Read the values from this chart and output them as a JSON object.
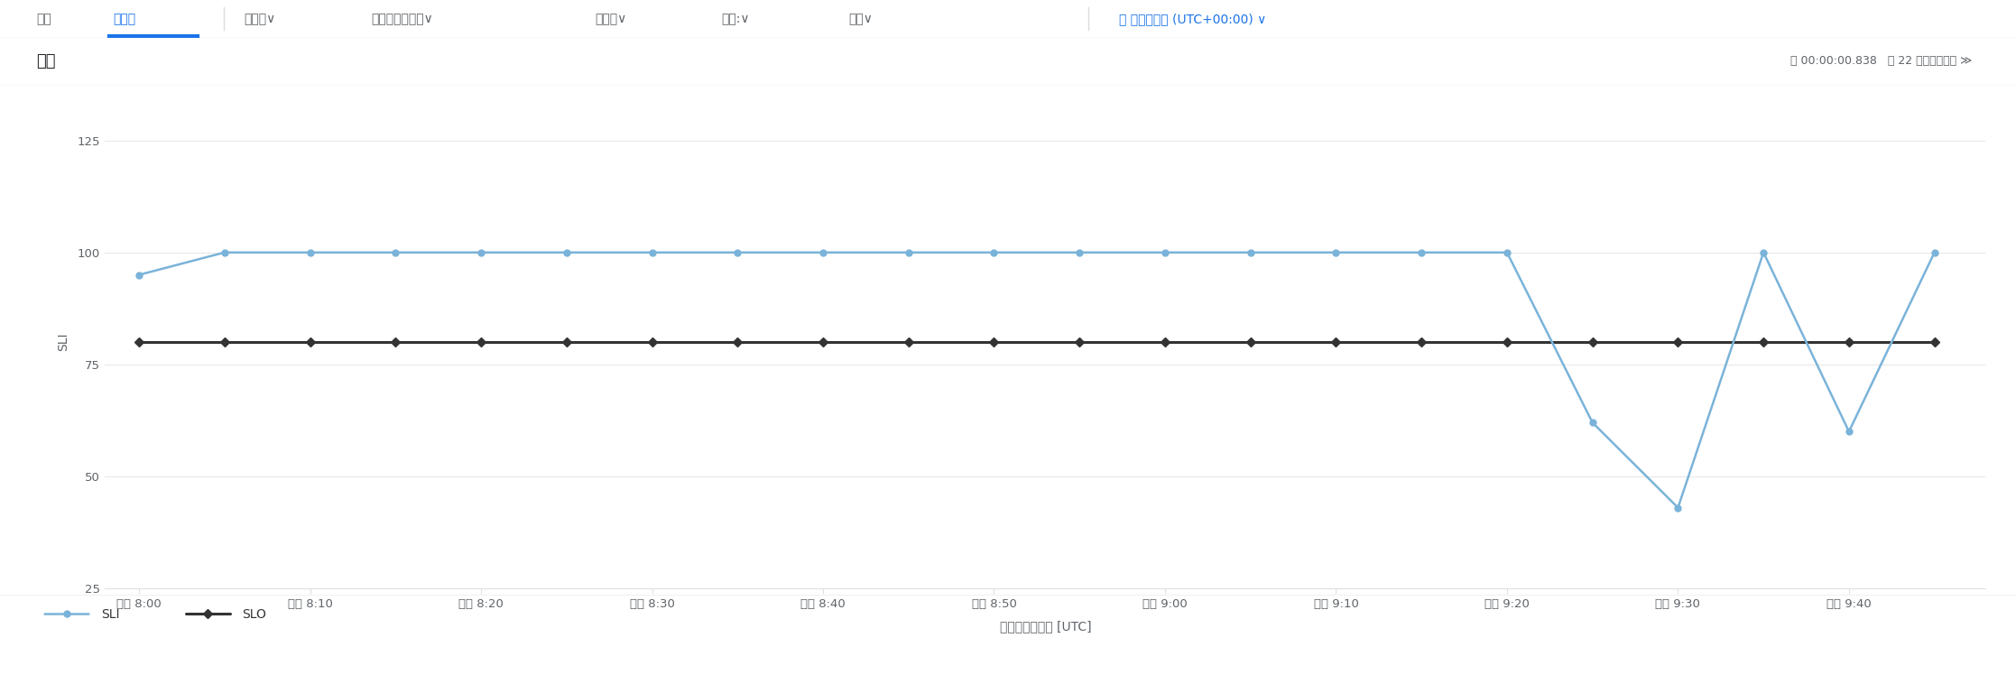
{
  "title_bar": "完了",
  "title_right": "© 00:00:00.838   □ 22 個のレコード »",
  "xlabel": "タイムスタンプ [UTC]",
  "ylabel": "SLI",
  "x_tick_labels": [
    "午後 8:00",
    "午後 8:10",
    "午後 8:20",
    "午後 8:30",
    "午後 8:40",
    "午後 8:50",
    "午後 9:00",
    "午後 9:10",
    "午後 9:20",
    "午後 9:30",
    "午後 9:40"
  ],
  "minutes": [
    480,
    485,
    490,
    495,
    500,
    505,
    510,
    515,
    520,
    525,
    530,
    535,
    540,
    545,
    550,
    555,
    560,
    565,
    570,
    575,
    580,
    585
  ],
  "sli_y": [
    95,
    100,
    100,
    100,
    100,
    100,
    100,
    100,
    100,
    100,
    100,
    100,
    100,
    100,
    100,
    100,
    100,
    62,
    43,
    100,
    60,
    100
  ],
  "slo_y": 80,
  "sli_color": "#7ab3d9",
  "slo_color": "#333333",
  "ylim_min": 25,
  "ylim_max": 135,
  "yticks": [
    25,
    50,
    75,
    100,
    125
  ],
  "xtick_pos": [
    480,
    490,
    500,
    510,
    520,
    530,
    540,
    550,
    560,
    570,
    580
  ],
  "grid_color": "#e8e8e8",
  "legend_sli_label": "SLI",
  "legend_slo_label": "SLO",
  "nav_left": [
    "結果",
    "グラフ",
    "折れ線∨",
    "タイムスタンプ∨",
    "すべて∨",
    "分割:∨",
    "合計∨"
  ],
  "nav_right": "⏱ 時間の表示 (UTC+00:00) ∨",
  "nav_bg": "#f8f9fa",
  "plot_bg": "#ffffff"
}
